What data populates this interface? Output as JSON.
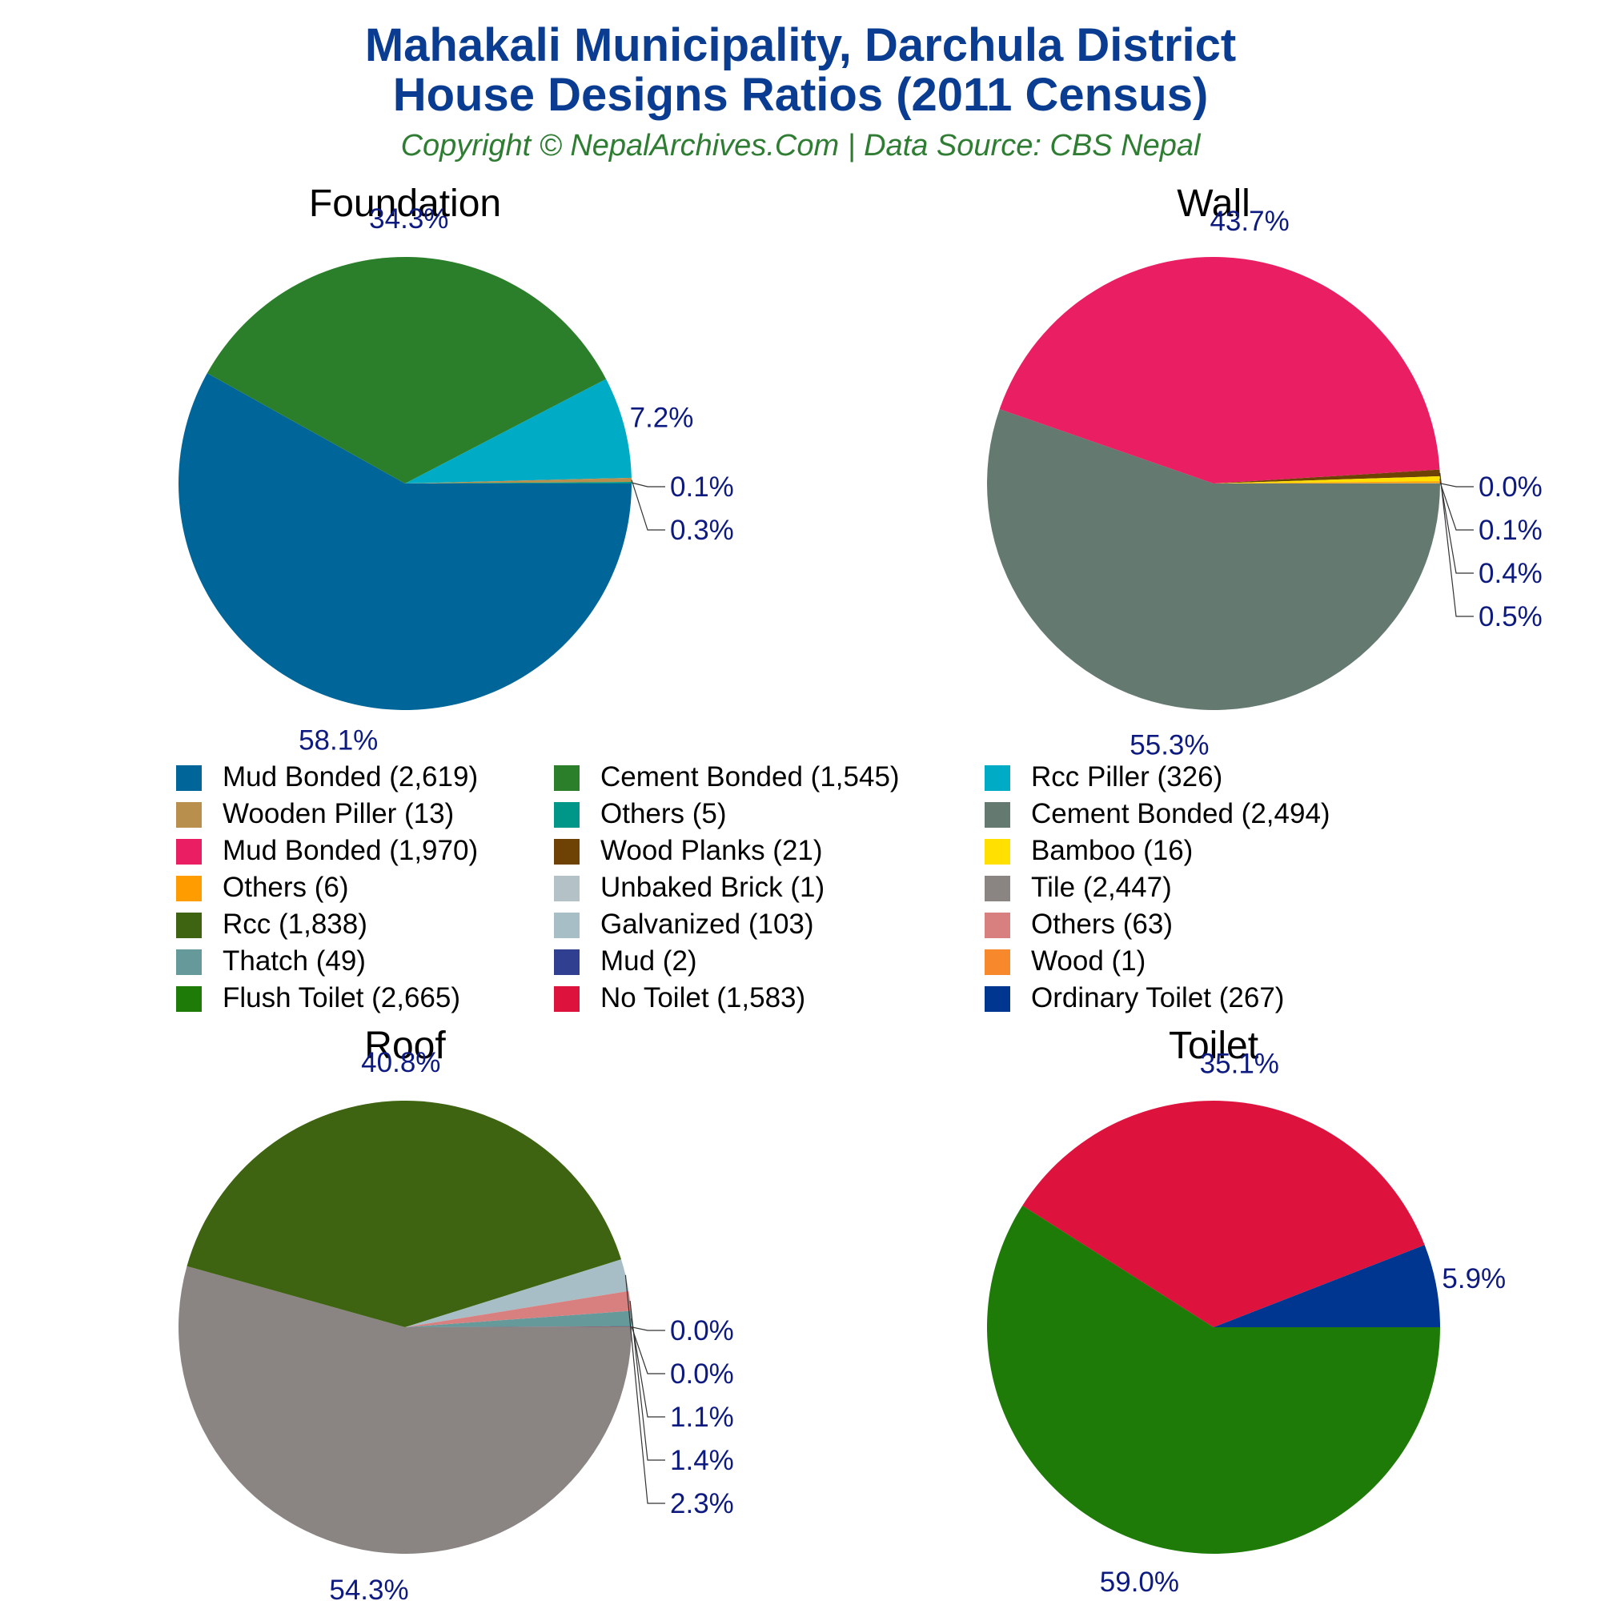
{
  "title_lines": [
    "Mahakali Municipality, Darchula District",
    "House Designs Ratios (2011 Census)"
  ],
  "subtitle": "Copyright © NepalArchives.Com | Data Source: CBS Nepal",
  "chart_data": [
    {
      "type": "pie",
      "title": "Foundation",
      "labels": [
        "Mud Bonded",
        "Cement Bonded",
        "Rcc Piller",
        "Wooden Piller",
        "Others"
      ],
      "values": [
        2619,
        1545,
        326,
        13,
        5
      ],
      "percent_labels": [
        "58.1%",
        "34.3%",
        "7.2%",
        "0.3%",
        "0.1%"
      ],
      "colors": [
        "#006699",
        "#2b7f2b",
        "#00abc5",
        "#b98f4e",
        "#009688"
      ]
    },
    {
      "type": "pie",
      "title": "Wall",
      "labels": [
        "Cement Bonded",
        "Mud Bonded",
        "Wood Planks",
        "Bamboo",
        "Others",
        "Unbaked Brick"
      ],
      "values": [
        2494,
        1970,
        21,
        16,
        6,
        1
      ],
      "percent_labels": [
        "55.3%",
        "43.7%",
        "0.5%",
        "0.4%",
        "0.1%",
        "0.0%"
      ],
      "colors": [
        "#647970",
        "#e91e63",
        "#6e4204",
        "#ffe000",
        "#ff9c00",
        "#b4c2c8"
      ]
    },
    {
      "type": "pie",
      "title": "Roof",
      "labels": [
        "Tile",
        "Rcc",
        "Galvanized",
        "Others",
        "Thatch",
        "Mud",
        "Wood"
      ],
      "values": [
        2447,
        1838,
        103,
        63,
        49,
        2,
        1
      ],
      "percent_labels": [
        "54.3%",
        "40.8%",
        "2.3%",
        "1.4%",
        "1.1%",
        "0.0%",
        "0.0%"
      ],
      "colors": [
        "#8a8582",
        "#3e6311",
        "#a8bec6",
        "#d88080",
        "#669999",
        "#303f8f",
        "#f7882c"
      ]
    },
    {
      "type": "pie",
      "title": "Toilet",
      "labels": [
        "Flush Toilet",
        "No Toilet",
        "Ordinary Toilet"
      ],
      "values": [
        2665,
        1583,
        267
      ],
      "percent_labels": [
        "59.0%",
        "35.1%",
        "5.9%"
      ],
      "colors": [
        "#1e7b08",
        "#dd133d",
        "#003590"
      ]
    }
  ],
  "legend": [
    {
      "label": "Mud Bonded (2,619)",
      "color": "#006699"
    },
    {
      "label": "Cement Bonded (1,545)",
      "color": "#2b7f2b"
    },
    {
      "label": "Rcc Piller (326)",
      "color": "#00abc5"
    },
    {
      "label": "Wooden Piller (13)",
      "color": "#b98f4e"
    },
    {
      "label": "Others (5)",
      "color": "#009688"
    },
    {
      "label": "Cement Bonded (2,494)",
      "color": "#647970"
    },
    {
      "label": "Mud Bonded (1,970)",
      "color": "#e91e63"
    },
    {
      "label": "Wood Planks (21)",
      "color": "#6e4204"
    },
    {
      "label": "Bamboo (16)",
      "color": "#ffe000"
    },
    {
      "label": "Others (6)",
      "color": "#ff9c00"
    },
    {
      "label": "Unbaked Brick (1)",
      "color": "#b4c2c8"
    },
    {
      "label": "Tile (2,447)",
      "color": "#8a8582"
    },
    {
      "label": "Rcc (1,838)",
      "color": "#3e6311"
    },
    {
      "label": "Galvanized (103)",
      "color": "#a8bec6"
    },
    {
      "label": "Others (63)",
      "color": "#d88080"
    },
    {
      "label": "Thatch (49)",
      "color": "#669999"
    },
    {
      "label": "Mud (2)",
      "color": "#303f8f"
    },
    {
      "label": "Wood (1)",
      "color": "#f7882c"
    },
    {
      "label": "Flush Toilet (2,665)",
      "color": "#1e7b08"
    },
    {
      "label": "No Toilet (1,583)",
      "color": "#dd133d"
    },
    {
      "label": "Ordinary Toilet (267)",
      "color": "#003590"
    }
  ],
  "colors": {
    "title": "#0a3d91",
    "subtitle": "#2e7d32",
    "percent_label": "#0d1a80"
  }
}
